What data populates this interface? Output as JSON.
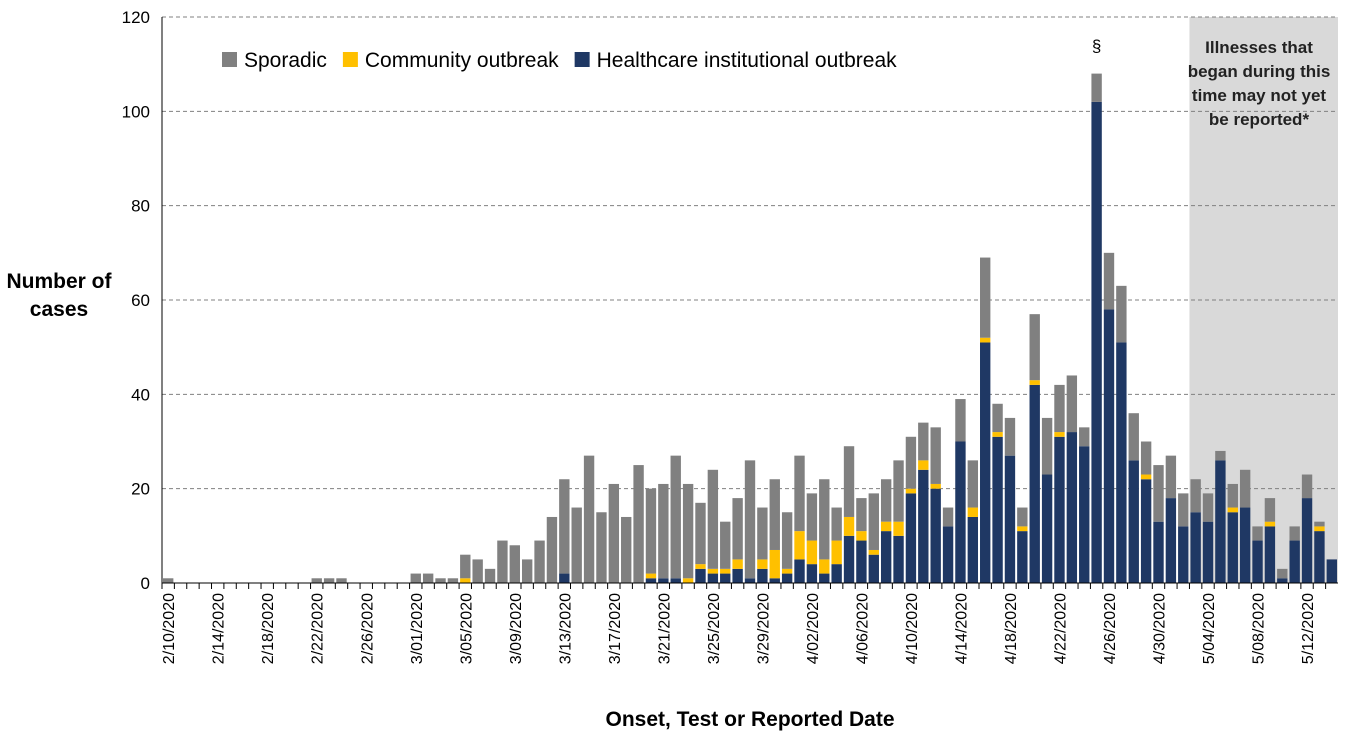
{
  "chart_data": {
    "type": "stacked_bar",
    "y_label": "Number of cases",
    "x_label": "Onset, Test or Reported Date",
    "annotations": [
      "§",
      "Illnesses that began during this time may not yet be reported*"
    ],
    "categories": [
      "2/10/2020",
      null,
      null,
      null,
      "2/14/2020",
      null,
      null,
      null,
      "2/18/2020",
      null,
      null,
      null,
      "2/22/2020",
      null,
      null,
      null,
      "2/26/2020",
      null,
      null,
      null,
      "3/01/2020",
      null,
      null,
      null,
      "3/05/2020",
      null,
      null,
      null,
      "3/09/2020",
      null,
      null,
      null,
      "3/13/2020",
      null,
      null,
      null,
      "3/17/2020",
      null,
      null,
      null,
      "3/21/2020",
      null,
      null,
      null,
      "3/25/2020",
      null,
      null,
      null,
      "3/29/2020",
      null,
      null,
      null,
      "4/02/2020",
      null,
      null,
      null,
      "4/06/2020",
      null,
      null,
      null,
      "4/10/2020",
      null,
      null,
      null,
      "4/14/2020",
      null,
      null,
      null,
      "4/18/2020",
      null,
      null,
      null,
      "4/22/2020",
      null,
      null,
      null,
      "4/26/2020",
      null,
      null,
      null,
      "4/30/2020",
      null,
      null,
      null,
      "5/04/2020",
      null,
      null,
      null,
      "5/08/2020",
      null,
      null,
      null,
      "5/12/2020",
      null,
      null
    ],
    "series": [
      {
        "name": "Sporadic",
        "color": "#808080",
        "values": [
          1,
          0,
          0,
          0,
          0,
          0,
          0,
          0,
          0,
          0,
          0,
          0,
          1,
          1,
          1,
          0,
          0,
          0,
          0,
          0,
          2,
          2,
          1,
          1,
          5,
          5,
          3,
          9,
          8,
          5,
          9,
          14,
          20,
          16,
          27,
          15,
          21,
          14,
          25,
          18,
          20,
          26,
          20,
          13,
          21,
          10,
          13,
          25,
          11,
          15,
          12,
          16,
          10,
          17,
          7,
          15,
          7,
          12,
          9,
          13,
          11,
          8,
          12,
          4,
          9,
          10,
          17,
          6,
          8,
          4,
          14,
          12,
          10,
          12,
          4,
          6,
          12,
          12,
          10,
          7,
          12,
          9,
          7,
          7,
          6,
          2,
          5,
          8,
          3,
          5,
          2,
          3,
          5,
          1,
          0
        ]
      },
      {
        "name": "Community outbreak",
        "color": "#ffc000",
        "values": [
          0,
          0,
          0,
          0,
          0,
          0,
          0,
          0,
          0,
          0,
          0,
          0,
          0,
          0,
          0,
          0,
          0,
          0,
          0,
          0,
          0,
          0,
          0,
          0,
          1,
          0,
          0,
          0,
          0,
          0,
          0,
          0,
          0,
          0,
          0,
          0,
          0,
          0,
          0,
          1,
          0,
          0,
          1,
          1,
          1,
          1,
          2,
          0,
          2,
          6,
          1,
          6,
          5,
          3,
          5,
          4,
          2,
          1,
          2,
          3,
          1,
          2,
          1,
          0,
          0,
          2,
          1,
          1,
          0,
          1,
          1,
          0,
          1,
          0,
          0,
          0,
          0,
          0,
          0,
          1,
          0,
          0,
          0,
          0,
          0,
          0,
          1,
          0,
          0,
          1,
          0,
          0,
          0,
          1,
          0
        ]
      },
      {
        "name": "Healthcare institutional outbreak",
        "color": "#1f3864",
        "values": [
          0,
          0,
          0,
          0,
          0,
          0,
          0,
          0,
          0,
          0,
          0,
          0,
          0,
          0,
          0,
          0,
          0,
          0,
          0,
          0,
          0,
          0,
          0,
          0,
          0,
          0,
          0,
          0,
          0,
          0,
          0,
          0,
          2,
          0,
          0,
          0,
          0,
          0,
          0,
          1,
          1,
          1,
          0,
          3,
          2,
          2,
          3,
          1,
          3,
          1,
          2,
          5,
          4,
          2,
          4,
          10,
          9,
          6,
          11,
          10,
          19,
          24,
          20,
          12,
          30,
          14,
          51,
          31,
          27,
          11,
          42,
          23,
          31,
          32,
          29,
          102,
          58,
          51,
          26,
          22,
          13,
          18,
          12,
          15,
          13,
          26,
          15,
          16,
          9,
          12,
          1,
          9,
          18,
          11,
          5
        ]
      }
    ],
    "ylim": [
      0,
      120
    ],
    "yticks": [
      0,
      20,
      40,
      60,
      80,
      100,
      120
    ],
    "grid": true
  }
}
